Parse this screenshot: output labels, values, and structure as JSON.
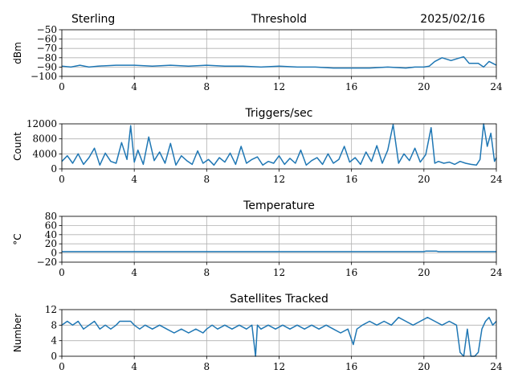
{
  "header": {
    "station": "Sterling",
    "date": "2025/02/16"
  },
  "colors": {
    "series": "#1f77b4",
    "grid": "#b0b0b0",
    "axes": "#000000"
  },
  "chart_data": [
    {
      "type": "line",
      "title": "Threshold",
      "ylabel": "dBm",
      "xlim": [
        0,
        24
      ],
      "ylim": [
        -100,
        -50
      ],
      "xticks": [
        0,
        4,
        8,
        12,
        16,
        20,
        24
      ],
      "yticks": [
        -100,
        -90,
        -80,
        -70,
        -60,
        -50
      ],
      "yticklabels": [
        "−100",
        "−90",
        "−80",
        "−70",
        "−60",
        "−50"
      ],
      "grid": true,
      "series": [
        {
          "x": [
            0,
            0.5,
            1,
            1.5,
            2,
            3,
            4,
            5,
            6,
            7,
            8,
            9,
            10,
            11,
            12,
            13,
            14,
            15,
            16,
            17,
            18,
            19,
            19.5,
            20,
            20.3,
            20.6,
            21,
            21.5,
            22,
            22.2,
            22.5,
            23,
            23.3,
            23.6,
            24
          ],
          "y": [
            -89,
            -90,
            -88,
            -90,
            -89,
            -88,
            -88,
            -89,
            -88,
            -89,
            -88,
            -89,
            -89,
            -90,
            -89,
            -90,
            -90,
            -91,
            -91,
            -91,
            -90,
            -91,
            -90,
            -90,
            -89,
            -84,
            -80,
            -83,
            -80,
            -79,
            -86,
            -86,
            -90,
            -84,
            -88
          ]
        }
      ]
    },
    {
      "type": "line",
      "title": "Triggers/sec",
      "ylabel": "Count",
      "xlim": [
        0,
        24
      ],
      "ylim": [
        0,
        12000
      ],
      "xticks": [
        0,
        4,
        8,
        12,
        16,
        20,
        24
      ],
      "yticks": [
        0,
        4000,
        8000,
        12000
      ],
      "yticklabels": [
        "0",
        "4000",
        "8000",
        "12000"
      ],
      "grid": true,
      "series": [
        {
          "x": [
            0,
            0.3,
            0.6,
            0.9,
            1.2,
            1.5,
            1.8,
            2.1,
            2.4,
            2.7,
            3.0,
            3.3,
            3.6,
            3.8,
            4.0,
            4.2,
            4.5,
            4.8,
            5.1,
            5.4,
            5.7,
            6.0,
            6.3,
            6.6,
            6.9,
            7.2,
            7.5,
            7.8,
            8.1,
            8.4,
            8.7,
            9.0,
            9.3,
            9.6,
            9.9,
            10.2,
            10.5,
            10.8,
            11.1,
            11.4,
            11.7,
            12.0,
            12.3,
            12.6,
            12.9,
            13.2,
            13.5,
            13.8,
            14.1,
            14.4,
            14.7,
            15.0,
            15.3,
            15.6,
            15.9,
            16.2,
            16.5,
            16.8,
            17.1,
            17.4,
            17.7,
            18.0,
            18.3,
            18.6,
            18.9,
            19.2,
            19.5,
            19.8,
            20.1,
            20.4,
            20.6,
            20.8,
            21.1,
            21.4,
            21.7,
            22.0,
            22.3,
            22.6,
            22.9,
            23.1,
            23.3,
            23.5,
            23.7,
            23.9,
            24.0
          ],
          "y": [
            2000,
            3500,
            1500,
            4000,
            1200,
            3000,
            5500,
            1000,
            4200,
            2000,
            1500,
            7000,
            2500,
            11500,
            1800,
            5000,
            1200,
            8500,
            2200,
            4500,
            1500,
            6800,
            1000,
            3500,
            2200,
            1200,
            4800,
            1500,
            2500,
            1000,
            3000,
            1800,
            4200,
            1200,
            6000,
            1500,
            2500,
            3200,
            1000,
            2000,
            1500,
            3500,
            1200,
            2800,
            1500,
            5000,
            1000,
            2200,
            3000,
            1200,
            4000,
            1500,
            2500,
            6000,
            1800,
            3000,
            1200,
            4500,
            2000,
            6200,
            1500,
            5000,
            11800,
            1500,
            4000,
            2200,
            5500,
            1800,
            3800,
            11000,
            1500,
            2000,
            1500,
            1800,
            1200,
            2000,
            1500,
            1200,
            1000,
            2500,
            12000,
            6000,
            9500,
            2000,
            3000
          ]
        }
      ]
    },
    {
      "type": "line",
      "title": "Temperature",
      "ylabel": "°C",
      "xlim": [
        0,
        24
      ],
      "ylim": [
        -20,
        80
      ],
      "xticks": [
        0,
        4,
        8,
        12,
        16,
        20,
        24
      ],
      "yticks": [
        -20,
        0,
        20,
        40,
        60,
        80
      ],
      "yticklabels": [
        "−20",
        "0",
        "20",
        "40",
        "60",
        "80"
      ],
      "grid": true,
      "series": [
        {
          "x": [
            0,
            4,
            8,
            12,
            16,
            20,
            20.1,
            20.7,
            20.8,
            24
          ],
          "y": [
            3,
            3,
            3,
            3,
            3,
            3,
            4,
            4,
            3,
            3
          ]
        }
      ]
    },
    {
      "type": "line",
      "title": "Satellites Tracked",
      "ylabel": "Number",
      "xlim": [
        0,
        24
      ],
      "ylim": [
        0,
        12
      ],
      "xticks": [
        0,
        4,
        8,
        12,
        16,
        20,
        24
      ],
      "yticks": [
        0,
        4,
        8,
        12
      ],
      "yticklabels": [
        "0",
        "4",
        "8",
        "12"
      ],
      "grid": true,
      "series": [
        {
          "x": [
            0,
            0.3,
            0.6,
            0.9,
            1.2,
            1.5,
            1.8,
            2.1,
            2.4,
            2.7,
            3.0,
            3.2,
            3.4,
            3.8,
            4.0,
            4.3,
            4.6,
            5.0,
            5.4,
            5.8,
            6.2,
            6.6,
            7.0,
            7.4,
            7.8,
            8.0,
            8.3,
            8.6,
            9.0,
            9.4,
            9.8,
            10.2,
            10.5,
            10.7,
            10.8,
            11.0,
            11.4,
            11.8,
            12.2,
            12.6,
            13.0,
            13.4,
            13.8,
            14.2,
            14.6,
            15.0,
            15.4,
            15.8,
            16.1,
            16.3,
            16.6,
            17.0,
            17.4,
            17.8,
            18.2,
            18.6,
            19.0,
            19.4,
            19.8,
            20.2,
            20.6,
            21.0,
            21.4,
            21.8,
            22.0,
            22.2,
            22.4,
            22.6,
            22.8,
            23.0,
            23.2,
            23.4,
            23.6,
            23.8,
            24.0
          ],
          "y": [
            8,
            9,
            8,
            9,
            7,
            8,
            9,
            7,
            8,
            7,
            8,
            9,
            9,
            9,
            8,
            7,
            8,
            7,
            8,
            7,
            6,
            7,
            6,
            7,
            6,
            7,
            8,
            7,
            8,
            7,
            8,
            7,
            8,
            0,
            8,
            7,
            8,
            7,
            8,
            7,
            8,
            7,
            8,
            7,
            8,
            7,
            6,
            7,
            3,
            7,
            8,
            9,
            8,
            9,
            8,
            10,
            9,
            8,
            9,
            10,
            9,
            8,
            9,
            8,
            1,
            0,
            7,
            0,
            0,
            1,
            7,
            9,
            10,
            8,
            9
          ]
        }
      ]
    }
  ]
}
